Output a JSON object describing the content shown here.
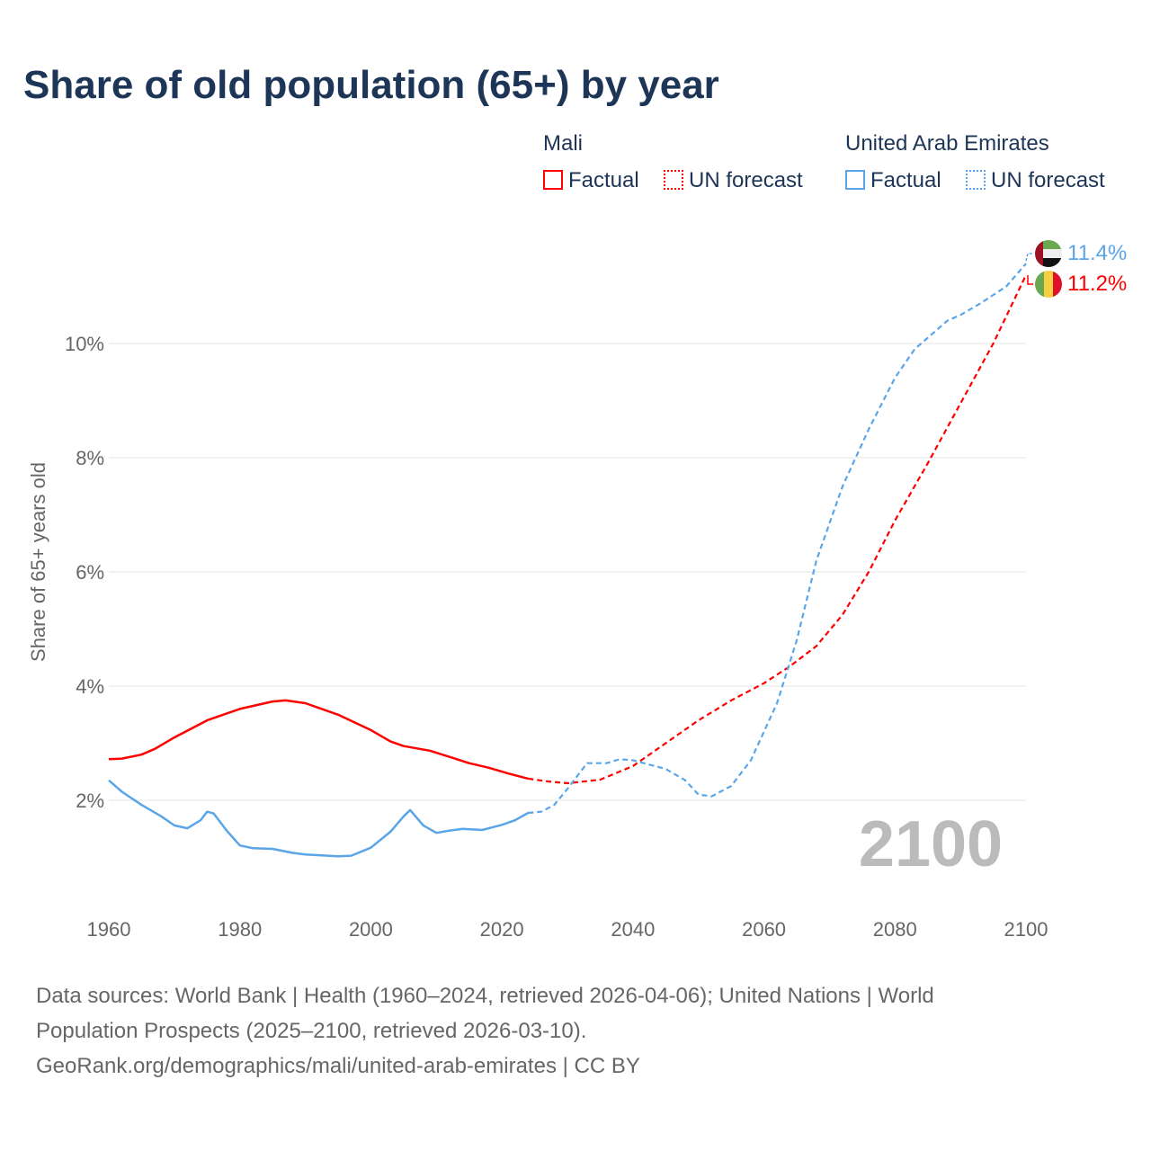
{
  "title": "Share of old population (65+) by year",
  "legend": {
    "groups": [
      {
        "name": "Mali",
        "factual": "Factual",
        "forecast": "UN forecast",
        "color": "#ff0000"
      },
      {
        "name": "United Arab Emirates",
        "factual": "Factual",
        "forecast": "UN forecast",
        "color": "#5aa5e8"
      }
    ]
  },
  "year_label": "2100",
  "footer": [
    "Data sources: World Bank | Health (1960–2024, retrieved 2026-04-06); United Nations | World",
    "Population Prospects (2025–2100, retrieved 2026-03-10).",
    "GeoRank.org/demographics/mali/united-arab-emirates | CC BY"
  ],
  "chart_data": {
    "type": "line",
    "title": "Share of old population (65+) by year",
    "ylabel": "Share of 65+ years old",
    "xlabel": "",
    "xlim": [
      1960,
      2100
    ],
    "ylim": [
      0,
      12
    ],
    "xticks": [
      "1960",
      "1980",
      "2000",
      "2020",
      "2040",
      "2060",
      "2080",
      "2100"
    ],
    "yticks": [
      {
        "v": 2,
        "label": "2%"
      },
      {
        "v": 4,
        "label": "4%"
      },
      {
        "v": 6,
        "label": "6%"
      },
      {
        "v": 8,
        "label": "8%"
      },
      {
        "v": 10,
        "label": "10%"
      }
    ],
    "grid": true,
    "series": [
      {
        "name": "Mali",
        "color": "#ff0000",
        "end_label": "11.2%",
        "factual": [
          [
            1960,
            2.72
          ],
          [
            1962,
            2.73
          ],
          [
            1965,
            2.8
          ],
          [
            1967,
            2.9
          ],
          [
            1970,
            3.1
          ],
          [
            1975,
            3.4
          ],
          [
            1980,
            3.6
          ],
          [
            1985,
            3.73
          ],
          [
            1987,
            3.75
          ],
          [
            1990,
            3.7
          ],
          [
            1995,
            3.5
          ],
          [
            2000,
            3.23
          ],
          [
            2003,
            3.03
          ],
          [
            2005,
            2.95
          ],
          [
            2009,
            2.87
          ],
          [
            2012,
            2.76
          ],
          [
            2015,
            2.65
          ],
          [
            2018,
            2.57
          ],
          [
            2021,
            2.47
          ],
          [
            2024,
            2.38
          ]
        ],
        "forecast": [
          [
            2024,
            2.38
          ],
          [
            2027,
            2.33
          ],
          [
            2030,
            2.3
          ],
          [
            2035,
            2.36
          ],
          [
            2040,
            2.6
          ],
          [
            2045,
            3.0
          ],
          [
            2050,
            3.4
          ],
          [
            2055,
            3.75
          ],
          [
            2060,
            4.05
          ],
          [
            2064,
            4.35
          ],
          [
            2068,
            4.7
          ],
          [
            2072,
            5.25
          ],
          [
            2076,
            6.0
          ],
          [
            2080,
            6.9
          ],
          [
            2085,
            7.9
          ],
          [
            2090,
            8.95
          ],
          [
            2095,
            10.0
          ],
          [
            2100,
            11.2
          ]
        ]
      },
      {
        "name": "United Arab Emirates",
        "color": "#5aa5e8",
        "end_label": "11.4%",
        "factual": [
          [
            1960,
            2.35
          ],
          [
            1962,
            2.15
          ],
          [
            1965,
            1.92
          ],
          [
            1968,
            1.72
          ],
          [
            1970,
            1.56
          ],
          [
            1972,
            1.51
          ],
          [
            1974,
            1.65
          ],
          [
            1975,
            1.8
          ],
          [
            1976,
            1.77
          ],
          [
            1978,
            1.47
          ],
          [
            1980,
            1.21
          ],
          [
            1982,
            1.16
          ],
          [
            1985,
            1.15
          ],
          [
            1988,
            1.08
          ],
          [
            1990,
            1.05
          ],
          [
            1995,
            1.02
          ],
          [
            1997,
            1.03
          ],
          [
            2000,
            1.17
          ],
          [
            2003,
            1.45
          ],
          [
            2005,
            1.72
          ],
          [
            2006,
            1.83
          ],
          [
            2008,
            1.56
          ],
          [
            2010,
            1.43
          ],
          [
            2012,
            1.47
          ],
          [
            2014,
            1.5
          ],
          [
            2017,
            1.48
          ],
          [
            2020,
            1.57
          ],
          [
            2022,
            1.65
          ],
          [
            2024,
            1.78
          ]
        ],
        "forecast": [
          [
            2024,
            1.78
          ],
          [
            2026,
            1.8
          ],
          [
            2028,
            1.92
          ],
          [
            2030,
            2.2
          ],
          [
            2033,
            2.65
          ],
          [
            2036,
            2.65
          ],
          [
            2038,
            2.72
          ],
          [
            2040,
            2.7
          ],
          [
            2045,
            2.55
          ],
          [
            2048,
            2.35
          ],
          [
            2050,
            2.1
          ],
          [
            2052,
            2.07
          ],
          [
            2055,
            2.25
          ],
          [
            2058,
            2.7
          ],
          [
            2062,
            3.7
          ],
          [
            2065,
            4.8
          ],
          [
            2068,
            6.2
          ],
          [
            2072,
            7.5
          ],
          [
            2076,
            8.5
          ],
          [
            2080,
            9.4
          ],
          [
            2083,
            9.9
          ],
          [
            2088,
            10.4
          ],
          [
            2090,
            10.5
          ],
          [
            2093,
            10.7
          ],
          [
            2097,
            11.0
          ],
          [
            2100,
            11.4
          ]
        ]
      }
    ]
  }
}
